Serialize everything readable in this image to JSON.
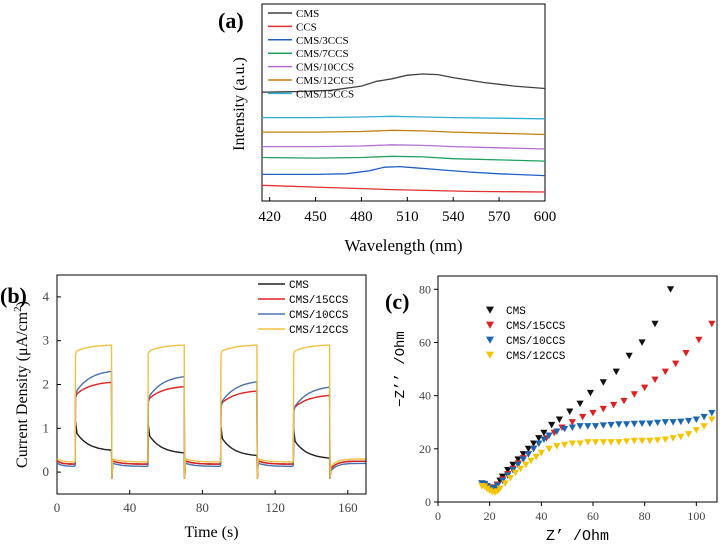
{
  "chart_data": [
    {
      "panel_label": "(a)",
      "type": "line",
      "xlabel": "Wavelength (nm)",
      "ylabel": "Intensity (a.u.)",
      "xlim": [
        415,
        600
      ],
      "ylim": [
        0,
        100
      ],
      "x_ticks": [
        420,
        450,
        480,
        510,
        540,
        570,
        600
      ],
      "x_tick_labels": [
        "420",
        "450",
        "480",
        "510",
        "540",
        "570",
        "600"
      ],
      "y_ticks_shown": false,
      "legend": "top-left",
      "series": [
        {
          "name": "CMS",
          "color": "#404040",
          "x": [
            415,
            440,
            460,
            480,
            490,
            500,
            510,
            520,
            530,
            540,
            560,
            580,
            600
          ],
          "y": [
            85,
            85.5,
            86.5,
            90,
            94,
            96,
            99,
            100,
            99.5,
            97,
            93,
            90,
            88
          ]
        },
        {
          "name": "CCS",
          "color": "#e03030",
          "x": [
            415,
            450,
            500,
            550,
            600
          ],
          "y": [
            8,
            6.5,
            4.5,
            3,
            2.5
          ]
        },
        {
          "name": "CMS/3CCS",
          "color": "#2060c0",
          "x": [
            415,
            450,
            470,
            485,
            495,
            505,
            515,
            530,
            550,
            570,
            600
          ],
          "y": [
            17,
            17,
            17.5,
            20,
            23,
            23.5,
            22.5,
            21,
            19,
            17.5,
            16
          ]
        },
        {
          "name": "CMS/7CCS",
          "color": "#20a060",
          "x": [
            415,
            450,
            480,
            500,
            520,
            540,
            570,
            600
          ],
          "y": [
            31,
            30.5,
            31,
            32,
            31.5,
            30,
            29,
            28
          ]
        },
        {
          "name": "CMS/10CCS",
          "color": "#b070d0",
          "x": [
            415,
            450,
            480,
            500,
            520,
            540,
            570,
            600
          ],
          "y": [
            40,
            40,
            40.5,
            41.5,
            41,
            40,
            39,
            38
          ]
        },
        {
          "name": "CMS/12CCS",
          "color": "#c08010",
          "x": [
            415,
            450,
            480,
            500,
            520,
            540,
            570,
            600
          ],
          "y": [
            52,
            52,
            52.5,
            53.5,
            53,
            52,
            51,
            50
          ]
        },
        {
          "name": "CMS/15CCS",
          "color": "#30b0d0",
          "x": [
            415,
            450,
            480,
            500,
            520,
            540,
            570,
            600
          ],
          "y": [
            64,
            64,
            64.5,
            65,
            64.5,
            64,
            63.5,
            63
          ]
        }
      ]
    },
    {
      "panel_label": "(b)",
      "type": "line",
      "xlabel": "Time (s)",
      "ylabel": "Current Density (μA/cm",
      "ylabel_sup": "2",
      "ylabel_close": ")",
      "xlim": [
        0,
        170
      ],
      "ylim": [
        -0.5,
        4.5
      ],
      "x_ticks": [
        0,
        40,
        80,
        120,
        160
      ],
      "x_tick_labels": [
        "0",
        "40",
        "80",
        "120",
        "160"
      ],
      "y_ticks": [
        0,
        1,
        2,
        3,
        4
      ],
      "y_tick_labels": [
        "0",
        "1",
        "2",
        "3",
        "4"
      ],
      "legend": "top-right",
      "cycles_on": [
        [
          10,
          30
        ],
        [
          50,
          70
        ],
        [
          90,
          110
        ],
        [
          130,
          150
        ]
      ],
      "series": [
        {
          "name": "CMS",
          "color": "#202020",
          "on_start": 0.95,
          "on_end": 0.5,
          "off_level": 0.2,
          "drift": -0.06
        },
        {
          "name": "CMS/15CCS",
          "color": "#e02020",
          "on_start": 1.75,
          "on_end": 2.05,
          "off_level": 0.2,
          "drift": -0.1
        },
        {
          "name": "CMS/10CCS",
          "color": "#4a70b0",
          "on_start": 1.8,
          "on_end": 2.3,
          "off_level": 0.15,
          "drift": -0.12
        },
        {
          "name": "CMS/12CCS",
          "color": "#f0c040",
          "on_start": 2.75,
          "on_end": 2.9,
          "off_level": 0.25,
          "drift": 0.0
        }
      ]
    },
    {
      "panel_label": "(c)",
      "type": "scatter",
      "xlabel": "Z’ /Ohm",
      "ylabel": "−Z’’ /Ohm",
      "xlim": [
        0,
        108
      ],
      "ylim": [
        0,
        85
      ],
      "x_ticks": [
        0,
        20,
        40,
        60,
        80,
        100
      ],
      "x_tick_labels": [
        "0",
        "20",
        "40",
        "60",
        "80",
        "100"
      ],
      "y_ticks": [
        0,
        20,
        40,
        60,
        80
      ],
      "y_tick_labels": [
        "0",
        "20",
        "40",
        "60",
        "80"
      ],
      "legend": "top-left",
      "series": [
        {
          "name": "CMS",
          "color": "#101010",
          "x": [
            17,
            18,
            19,
            20,
            21,
            22,
            23,
            24,
            25,
            27,
            29,
            31,
            33,
            35,
            37,
            39,
            41,
            44,
            47,
            51,
            55,
            59,
            64,
            69,
            74,
            79,
            84,
            90
          ],
          "y": [
            7,
            6.5,
            5.8,
            5,
            4.5,
            5,
            6.5,
            8,
            9.5,
            12,
            14,
            16,
            18,
            20,
            22,
            24,
            26,
            29,
            31,
            34,
            37,
            41,
            45,
            49,
            55,
            60,
            67,
            80
          ]
        },
        {
          "name": "CMS/15CCS",
          "color": "#e02020",
          "x": [
            17,
            18,
            19,
            20,
            21,
            22,
            23,
            25,
            27,
            29,
            31,
            33,
            35,
            37,
            39,
            42,
            45,
            48,
            52,
            56,
            60,
            64,
            68,
            72,
            76,
            80,
            84,
            88,
            92,
            96,
            101,
            106
          ],
          "y": [
            7,
            6.5,
            6,
            5.5,
            5,
            5.5,
            6.5,
            8.5,
            10.5,
            12.5,
            14.5,
            16.5,
            18,
            20,
            22,
            24,
            26,
            28,
            30,
            32,
            33.5,
            35,
            36.5,
            38,
            40.5,
            43,
            46,
            49,
            52,
            56,
            61,
            67
          ]
        },
        {
          "name": "CMS/10CCS",
          "color": "#1a66b0",
          "x": [
            17,
            18,
            19,
            20,
            21,
            22,
            23,
            25,
            27,
            29,
            31,
            33,
            35,
            37,
            39,
            41,
            43,
            46,
            49,
            52,
            55,
            58,
            61,
            64,
            67,
            70,
            73,
            76,
            79,
            82,
            85,
            88,
            91,
            94,
            97,
            100,
            103,
            106
          ],
          "y": [
            7,
            6.8,
            6,
            5.2,
            4.8,
            5.2,
            6.2,
            8,
            10,
            12,
            14,
            16,
            18,
            20,
            22,
            23.5,
            25,
            26.5,
            27.5,
            28,
            28.5,
            28.5,
            28.5,
            28.8,
            29,
            29.2,
            29.2,
            29.4,
            29.5,
            29.5,
            29.8,
            30,
            30,
            30.2,
            30.5,
            31,
            32,
            33.5
          ]
        },
        {
          "name": "CMS/12CCS",
          "color": "#f5c400",
          "x": [
            17,
            18,
            19,
            20,
            21,
            22,
            23,
            24,
            26,
            28,
            30,
            32,
            34,
            36,
            38,
            40,
            43,
            46,
            49,
            52,
            55,
            58,
            61,
            64,
            67,
            70,
            73,
            76,
            79,
            82,
            85,
            88,
            91,
            94,
            97,
            100,
            103,
            106
          ],
          "y": [
            6,
            5.8,
            5,
            4.3,
            3.8,
            3.6,
            4,
            5,
            7,
            9,
            11,
            12.5,
            14,
            15.5,
            17,
            18.5,
            20,
            21,
            21.5,
            22,
            22,
            22.5,
            22.5,
            22.5,
            22.5,
            22.5,
            22.8,
            23,
            23,
            23,
            23.2,
            23.5,
            24,
            24.5,
            25.5,
            27,
            28.5,
            31
          ]
        }
      ]
    }
  ]
}
